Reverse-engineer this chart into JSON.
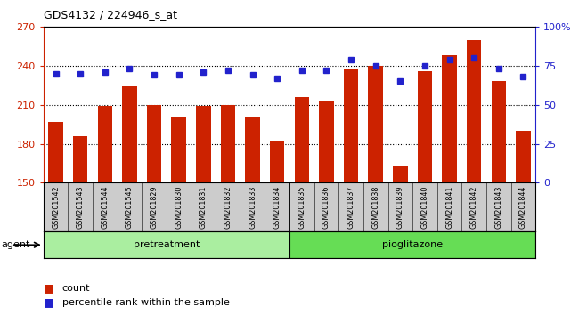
{
  "title": "GDS4132 / 224946_s_at",
  "categories": [
    "GSM201542",
    "GSM201543",
    "GSM201544",
    "GSM201545",
    "GSM201829",
    "GSM201830",
    "GSM201831",
    "GSM201832",
    "GSM201833",
    "GSM201834",
    "GSM201835",
    "GSM201836",
    "GSM201837",
    "GSM201838",
    "GSM201839",
    "GSM201840",
    "GSM201841",
    "GSM201842",
    "GSM201843",
    "GSM201844"
  ],
  "bar_values": [
    197,
    186,
    209,
    224,
    210,
    200,
    209,
    210,
    200,
    182,
    216,
    213,
    238,
    240,
    163,
    236,
    248,
    260,
    228,
    190
  ],
  "dot_values": [
    70,
    70,
    71,
    73,
    69,
    69,
    71,
    72,
    69,
    67,
    72,
    72,
    79,
    75,
    65,
    75,
    79,
    80,
    73,
    68
  ],
  "ylim_left": [
    150,
    270
  ],
  "ylim_right": [
    0,
    100
  ],
  "yticks_left": [
    150,
    180,
    210,
    240,
    270
  ],
  "yticks_right": [
    0,
    25,
    50,
    75,
    100
  ],
  "bar_color": "#cc2200",
  "dot_color": "#2222cc",
  "grid_values": [
    180,
    210,
    240
  ],
  "group_label_pretreatment": "pretreatment",
  "group_label_pioglitazone": "pioglitazone",
  "agent_label": "agent",
  "legend_count": "count",
  "legend_percentile": "percentile rank within the sample",
  "bg_color_pretreatment": "#aaeea0",
  "bg_color_pioglitazone": "#66dd55",
  "tick_area_color": "#cccccc",
  "split_index": 10
}
